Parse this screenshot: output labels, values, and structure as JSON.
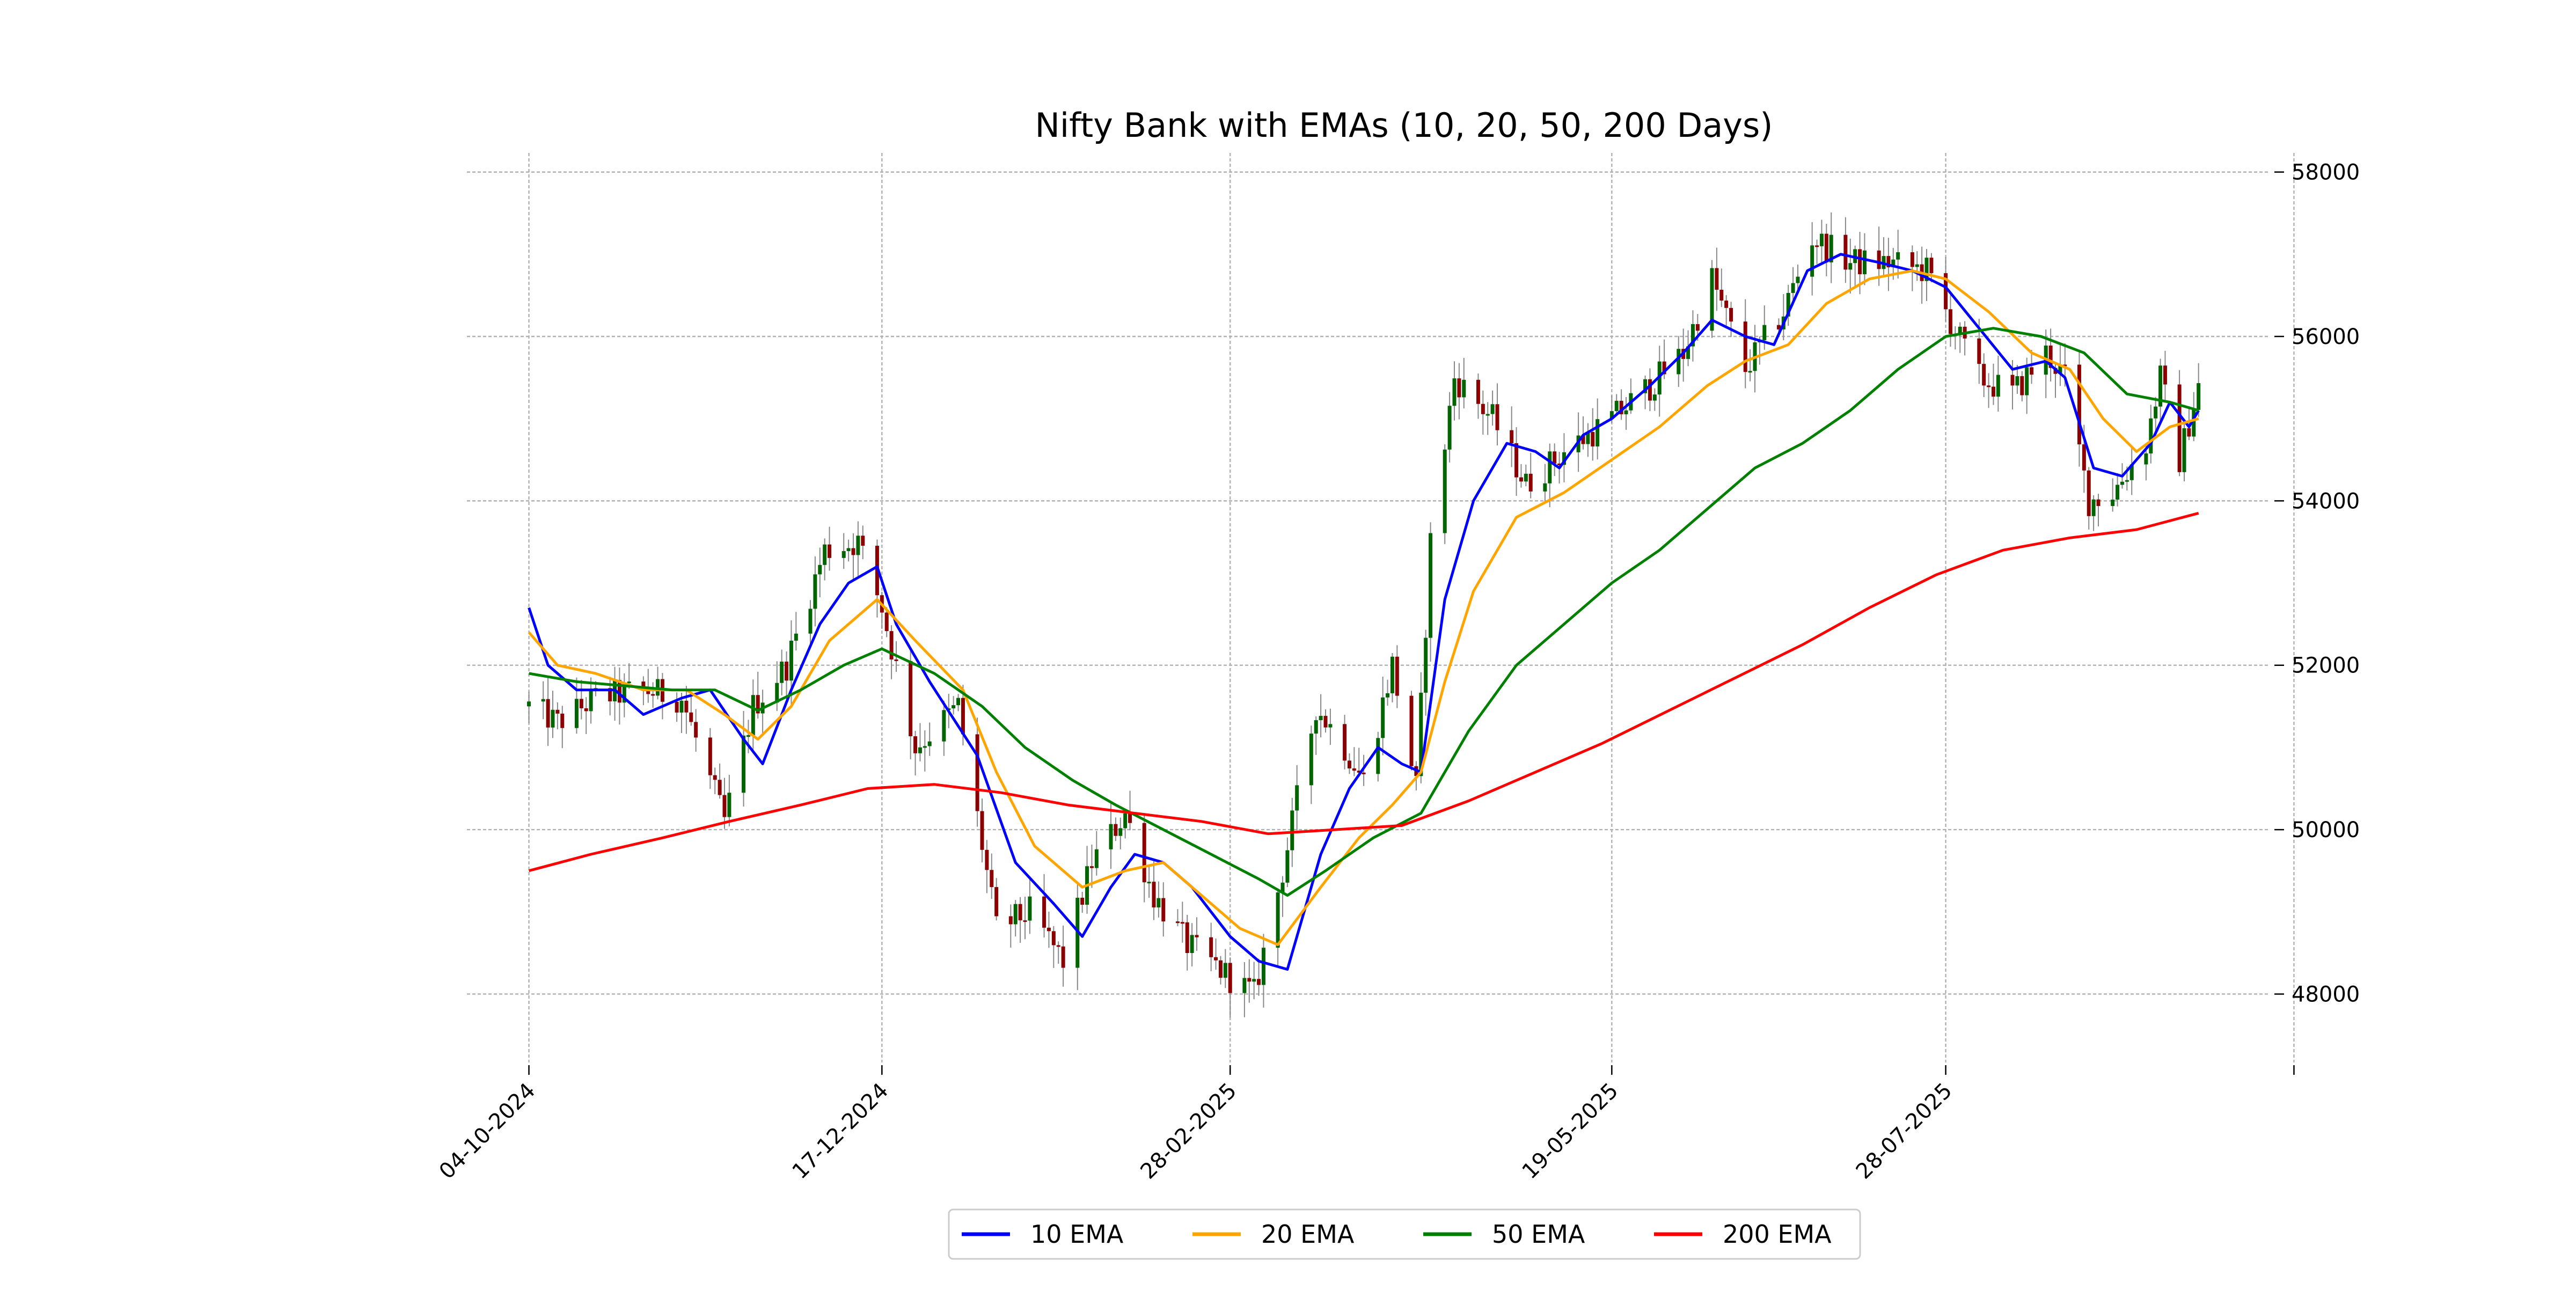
{
  "chart_data": {
    "type": "line",
    "title": "Nifty Bank with EMAs (10, 20, 50, 200 Days)",
    "xlabel": "",
    "ylabel": "",
    "y_axis_side": "right",
    "ylim": [
      47200,
      58200
    ],
    "yticks": [
      48000,
      50000,
      52000,
      54000,
      56000,
      58000
    ],
    "x_range": [
      "2024-09-21",
      "2025-10-04"
    ],
    "x_ticks": [
      {
        "date": "2024-10-04",
        "label": "04-10-2024"
      },
      {
        "date": "2024-12-17",
        "label": "17-12-2024"
      },
      {
        "date": "2025-02-28",
        "label": "28-02-2025"
      },
      {
        "date": "2025-05-19",
        "label": "19-05-2025"
      },
      {
        "date": "2025-07-28",
        "label": "28-07-2025"
      },
      {
        "date": "2025-10-09",
        "label": ""
      }
    ],
    "grid": true,
    "legend": {
      "placement": "bottom-center",
      "columns": 4
    },
    "candles": {
      "up_color": "#006400",
      "down_color": "#8b0000",
      "start_date": "2024-10-04",
      "end_date": "2025-09-19",
      "close_anchors": [
        [
          "2024-10-04",
          51500
        ],
        [
          "2024-10-10",
          51300
        ],
        [
          "2024-10-18",
          51600
        ],
        [
          "2024-10-28",
          51700
        ],
        [
          "2024-11-05",
          51600
        ],
        [
          "2024-11-14",
          50100
        ],
        [
          "2024-11-20",
          51500
        ],
        [
          "2024-11-27",
          52000
        ],
        [
          "2024-12-05",
          53400
        ],
        [
          "2024-12-12",
          53500
        ],
        [
          "2024-12-17",
          52700
        ],
        [
          "2024-12-24",
          51000
        ],
        [
          "2025-01-02",
          51500
        ],
        [
          "2025-01-10",
          48800
        ],
        [
          "2025-01-17",
          49000
        ],
        [
          "2025-01-24",
          48400
        ],
        [
          "2025-01-30",
          49600
        ],
        [
          "2025-02-06",
          50200
        ],
        [
          "2025-02-12",
          49200
        ],
        [
          "2025-02-19",
          48600
        ],
        [
          "2025-02-28",
          48200
        ],
        [
          "2025-03-05",
          48000
        ],
        [
          "2025-03-11",
          49500
        ],
        [
          "2025-03-18",
          51500
        ],
        [
          "2025-03-24",
          51000
        ],
        [
          "2025-03-28",
          50600
        ],
        [
          "2025-04-03",
          52000
        ],
        [
          "2025-04-08",
          50500
        ],
        [
          "2025-04-11",
          53500
        ],
        [
          "2025-04-16",
          55500
        ],
        [
          "2025-04-24",
          55000
        ],
        [
          "2025-05-01",
          54200
        ],
        [
          "2025-05-09",
          54600
        ],
        [
          "2025-05-19",
          55000
        ],
        [
          "2025-05-27",
          55400
        ],
        [
          "2025-06-03",
          55800
        ],
        [
          "2025-06-09",
          56700
        ],
        [
          "2025-06-16",
          55600
        ],
        [
          "2025-06-24",
          56300
        ],
        [
          "2025-06-30",
          57200
        ],
        [
          "2025-07-08",
          56900
        ],
        [
          "2025-07-16",
          56900
        ],
        [
          "2025-07-24",
          56800
        ],
        [
          "2025-07-28",
          56300
        ],
        [
          "2025-08-04",
          55500
        ],
        [
          "2025-08-11",
          55300
        ],
        [
          "2025-08-18",
          55800
        ],
        [
          "2025-08-22",
          55500
        ],
        [
          "2025-08-27",
          54000
        ],
        [
          "2025-09-01",
          54100
        ],
        [
          "2025-09-08",
          54700
        ],
        [
          "2025-09-11",
          55500
        ],
        [
          "2025-09-15",
          54500
        ],
        [
          "2025-09-19",
          55400
        ]
      ]
    },
    "series": [
      {
        "name": "10 EMA",
        "color": "#0000ff",
        "points": [
          [
            "2024-10-04",
            52700
          ],
          [
            "2024-10-08",
            52000
          ],
          [
            "2024-10-14",
            51700
          ],
          [
            "2024-10-22",
            51700
          ],
          [
            "2024-10-28",
            51400
          ],
          [
            "2024-11-05",
            51600
          ],
          [
            "2024-11-11",
            51700
          ],
          [
            "2024-11-18",
            51100
          ],
          [
            "2024-11-22",
            50800
          ],
          [
            "2024-11-28",
            51700
          ],
          [
            "2024-12-04",
            52500
          ],
          [
            "2024-12-10",
            53000
          ],
          [
            "2024-12-16",
            53200
          ],
          [
            "2024-12-20",
            52500
          ],
          [
            "2024-12-27",
            51800
          ],
          [
            "2025-01-06",
            50900
          ],
          [
            "2025-01-14",
            49600
          ],
          [
            "2025-01-22",
            49100
          ],
          [
            "2025-01-28",
            48700
          ],
          [
            "2025-02-03",
            49300
          ],
          [
            "2025-02-08",
            49700
          ],
          [
            "2025-02-14",
            49600
          ],
          [
            "2025-02-20",
            49300
          ],
          [
            "2025-02-28",
            48700
          ],
          [
            "2025-03-06",
            48400
          ],
          [
            "2025-03-12",
            48300
          ],
          [
            "2025-03-19",
            49700
          ],
          [
            "2025-03-25",
            50500
          ],
          [
            "2025-03-31",
            51000
          ],
          [
            "2025-04-05",
            50800
          ],
          [
            "2025-04-09",
            50700
          ],
          [
            "2025-04-14",
            52800
          ],
          [
            "2025-04-20",
            54000
          ],
          [
            "2025-04-27",
            54700
          ],
          [
            "2025-05-03",
            54600
          ],
          [
            "2025-05-08",
            54400
          ],
          [
            "2025-05-13",
            54800
          ],
          [
            "2025-05-19",
            55000
          ],
          [
            "2025-05-27",
            55400
          ],
          [
            "2025-06-03",
            55800
          ],
          [
            "2025-06-09",
            56200
          ],
          [
            "2025-06-16",
            56000
          ],
          [
            "2025-06-22",
            55900
          ],
          [
            "2025-06-29",
            56800
          ],
          [
            "2025-07-06",
            57000
          ],
          [
            "2025-07-14",
            56900
          ],
          [
            "2025-07-21",
            56800
          ],
          [
            "2025-07-28",
            56600
          ],
          [
            "2025-08-04",
            56100
          ],
          [
            "2025-08-11",
            55600
          ],
          [
            "2025-08-18",
            55700
          ],
          [
            "2025-08-22",
            55500
          ],
          [
            "2025-08-28",
            54400
          ],
          [
            "2025-09-03",
            54300
          ],
          [
            "2025-09-09",
            54700
          ],
          [
            "2025-09-13",
            55200
          ],
          [
            "2025-09-17",
            54900
          ],
          [
            "2025-09-19",
            55100
          ]
        ]
      },
      {
        "name": "20 EMA",
        "color": "#ffa500",
        "points": [
          [
            "2024-10-04",
            52400
          ],
          [
            "2024-10-10",
            52000
          ],
          [
            "2024-10-18",
            51900
          ],
          [
            "2024-10-28",
            51700
          ],
          [
            "2024-11-06",
            51700
          ],
          [
            "2024-11-14",
            51400
          ],
          [
            "2024-11-21",
            51100
          ],
          [
            "2024-11-28",
            51500
          ],
          [
            "2024-12-06",
            52300
          ],
          [
            "2024-12-16",
            52800
          ],
          [
            "2024-12-24",
            52300
          ],
          [
            "2025-01-03",
            51700
          ],
          [
            "2025-01-10",
            50700
          ],
          [
            "2025-01-18",
            49800
          ],
          [
            "2025-01-28",
            49300
          ],
          [
            "2025-02-06",
            49500
          ],
          [
            "2025-02-14",
            49600
          ],
          [
            "2025-02-22",
            49200
          ],
          [
            "2025-03-02",
            48800
          ],
          [
            "2025-03-10",
            48600
          ],
          [
            "2025-03-19",
            49300
          ],
          [
            "2025-03-27",
            49900
          ],
          [
            "2025-04-03",
            50300
          ],
          [
            "2025-04-09",
            50700
          ],
          [
            "2025-04-14",
            51800
          ],
          [
            "2025-04-20",
            52900
          ],
          [
            "2025-04-29",
            53800
          ],
          [
            "2025-05-09",
            54100
          ],
          [
            "2025-05-19",
            54500
          ],
          [
            "2025-05-29",
            54900
          ],
          [
            "2025-06-08",
            55400
          ],
          [
            "2025-06-16",
            55700
          ],
          [
            "2025-06-25",
            55900
          ],
          [
            "2025-07-03",
            56400
          ],
          [
            "2025-07-12",
            56700
          ],
          [
            "2025-07-21",
            56800
          ],
          [
            "2025-07-28",
            56700
          ],
          [
            "2025-08-06",
            56300
          ],
          [
            "2025-08-15",
            55800
          ],
          [
            "2025-08-23",
            55600
          ],
          [
            "2025-08-30",
            55000
          ],
          [
            "2025-09-06",
            54600
          ],
          [
            "2025-09-13",
            54900
          ],
          [
            "2025-09-19",
            55000
          ]
        ]
      },
      {
        "name": "50 EMA",
        "color": "#008000",
        "points": [
          [
            "2024-10-04",
            51900
          ],
          [
            "2024-10-14",
            51800
          ],
          [
            "2024-10-24",
            51750
          ],
          [
            "2024-11-03",
            51700
          ],
          [
            "2024-11-12",
            51700
          ],
          [
            "2024-11-21",
            51450
          ],
          [
            "2024-11-30",
            51700
          ],
          [
            "2024-12-09",
            52000
          ],
          [
            "2024-12-17",
            52200
          ],
          [
            "2024-12-28",
            51900
          ],
          [
            "2025-01-07",
            51500
          ],
          [
            "2025-01-16",
            51000
          ],
          [
            "2025-01-26",
            50600
          ],
          [
            "2025-02-04",
            50300
          ],
          [
            "2025-02-14",
            50000
          ],
          [
            "2025-02-24",
            49700
          ],
          [
            "2025-03-06",
            49400
          ],
          [
            "2025-03-12",
            49200
          ],
          [
            "2025-03-20",
            49500
          ],
          [
            "2025-03-30",
            49900
          ],
          [
            "2025-04-09",
            50200
          ],
          [
            "2025-04-19",
            51200
          ],
          [
            "2025-04-29",
            52000
          ],
          [
            "2025-05-09",
            52500
          ],
          [
            "2025-05-19",
            53000
          ],
          [
            "2025-05-29",
            53400
          ],
          [
            "2025-06-08",
            53900
          ],
          [
            "2025-06-18",
            54400
          ],
          [
            "2025-06-28",
            54700
          ],
          [
            "2025-07-08",
            55100
          ],
          [
            "2025-07-18",
            55600
          ],
          [
            "2025-07-28",
            56000
          ],
          [
            "2025-08-07",
            56100
          ],
          [
            "2025-08-17",
            56000
          ],
          [
            "2025-08-26",
            55800
          ],
          [
            "2025-09-04",
            55300
          ],
          [
            "2025-09-13",
            55200
          ],
          [
            "2025-09-19",
            55100
          ]
        ]
      },
      {
        "name": "200 EMA",
        "color": "#ff0000",
        "points": [
          [
            "2024-10-04",
            49500
          ],
          [
            "2024-10-17",
            49700
          ],
          [
            "2024-11-01",
            49900
          ],
          [
            "2024-11-15",
            50100
          ],
          [
            "2024-11-30",
            50300
          ],
          [
            "2024-12-14",
            50500
          ],
          [
            "2024-12-28",
            50550
          ],
          [
            "2025-01-11",
            50450
          ],
          [
            "2025-01-25",
            50300
          ],
          [
            "2025-02-08",
            50200
          ],
          [
            "2025-02-22",
            50100
          ],
          [
            "2025-03-08",
            49950
          ],
          [
            "2025-03-22",
            50000
          ],
          [
            "2025-04-05",
            50050
          ],
          [
            "2025-04-19",
            50350
          ],
          [
            "2025-05-03",
            50700
          ],
          [
            "2025-05-17",
            51050
          ],
          [
            "2025-05-31",
            51450
          ],
          [
            "2025-06-14",
            51850
          ],
          [
            "2025-06-28",
            52250
          ],
          [
            "2025-07-12",
            52700
          ],
          [
            "2025-07-26",
            53100
          ],
          [
            "2025-08-09",
            53400
          ],
          [
            "2025-08-23",
            53550
          ],
          [
            "2025-09-06",
            53650
          ],
          [
            "2025-09-19",
            53850
          ]
        ]
      }
    ]
  }
}
